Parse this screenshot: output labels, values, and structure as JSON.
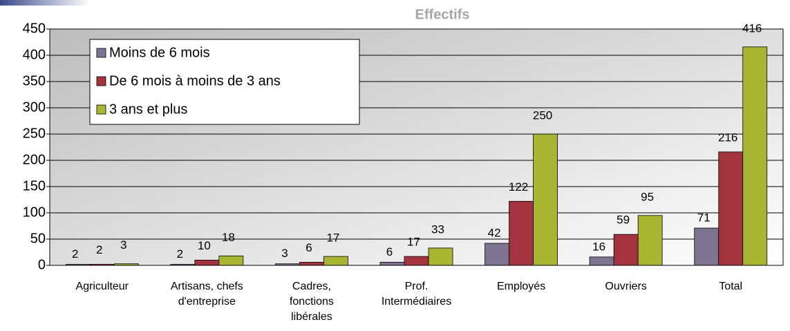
{
  "chart_data": {
    "type": "bar",
    "subtitle": "Effectifs",
    "categories": [
      "Agriculteur",
      "Artisans, chefs\nd'entreprise",
      "Cadres,\nfonctions\nlibérales",
      "Prof.\nIntermédiaires",
      "Employés",
      "Ouvriers",
      "Total"
    ],
    "series": [
      {
        "name": "Moins de 6 mois",
        "color": "#7f7392",
        "values": [
          2,
          2,
          3,
          6,
          42,
          16,
          71
        ]
      },
      {
        "name": "De 6 mois à moins de 3 ans",
        "color": "#a3343f",
        "values": [
          2,
          10,
          6,
          17,
          122,
          59,
          216
        ]
      },
      {
        "name": "3 ans et plus",
        "color": "#a8b532",
        "values": [
          3,
          18,
          17,
          33,
          250,
          95,
          416
        ]
      }
    ],
    "ylim": [
      0,
      450
    ],
    "yticks": [
      0,
      50,
      100,
      150,
      200,
      250,
      300,
      350,
      400,
      450
    ],
    "grid": true,
    "legend": "top-left"
  }
}
